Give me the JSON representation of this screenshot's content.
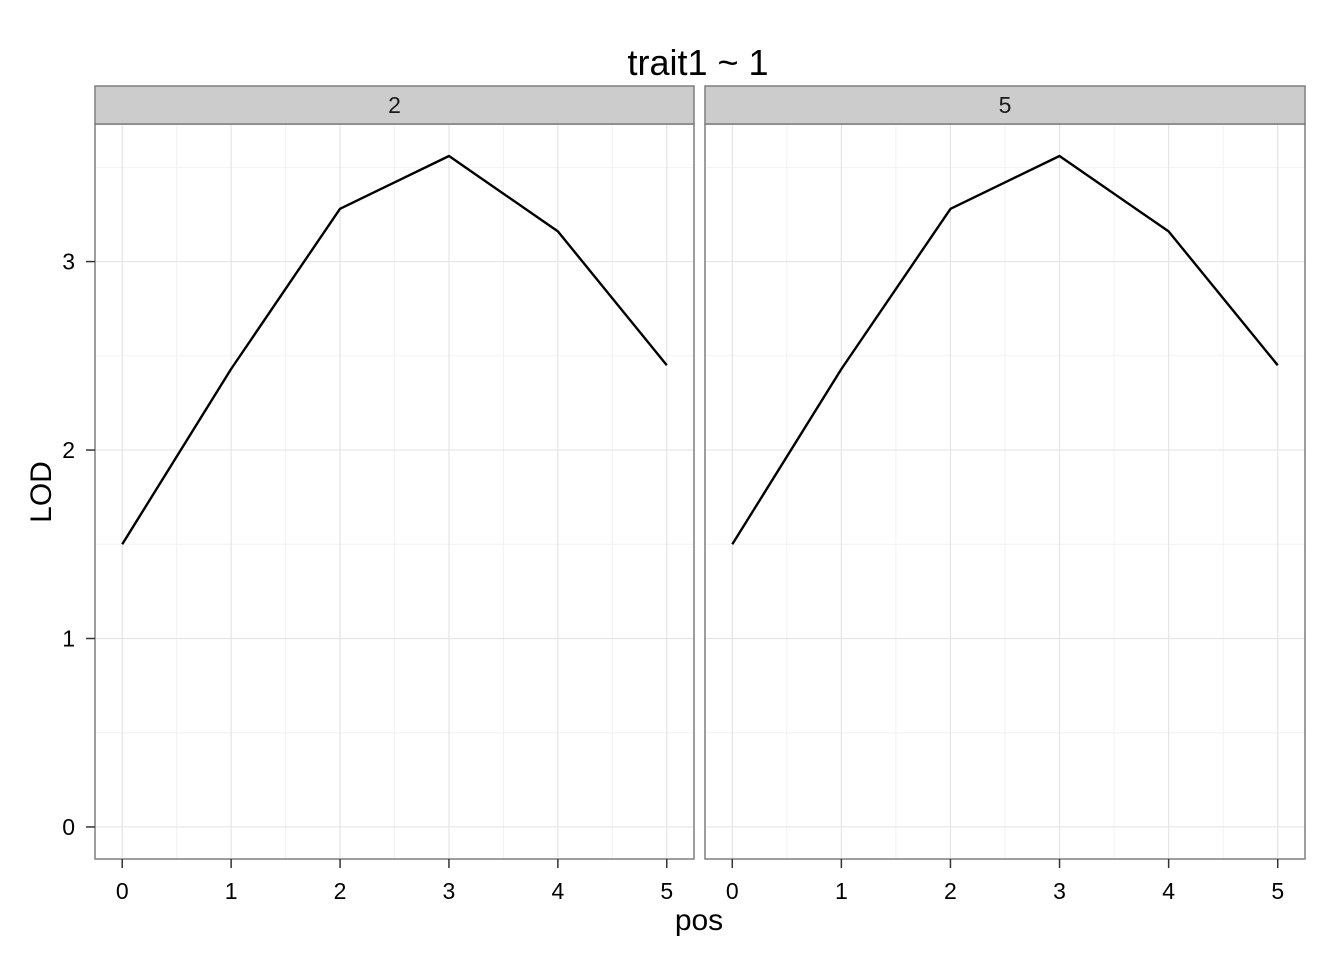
{
  "chart_data": {
    "type": "line",
    "title": "trait1 ~ 1",
    "xlabel": "pos",
    "ylabel": "LOD",
    "xlim": [
      -0.25,
      5.25
    ],
    "ylim": [
      -0.17,
      3.73
    ],
    "x_ticks": [
      0,
      1,
      2,
      3,
      4,
      5
    ],
    "y_ticks": [
      0,
      1,
      2,
      3
    ],
    "grid": true,
    "legend": "none",
    "line_color": "#000000",
    "facets": [
      {
        "label": "2",
        "x": [
          0,
          1,
          2,
          3,
          4,
          5
        ],
        "y": [
          1.5,
          2.43,
          3.28,
          3.56,
          3.16,
          2.45
        ]
      },
      {
        "label": "5",
        "x": [
          0,
          1,
          2,
          3,
          4,
          5
        ],
        "y": [
          1.5,
          2.43,
          3.28,
          3.56,
          3.16,
          2.45
        ]
      }
    ]
  }
}
